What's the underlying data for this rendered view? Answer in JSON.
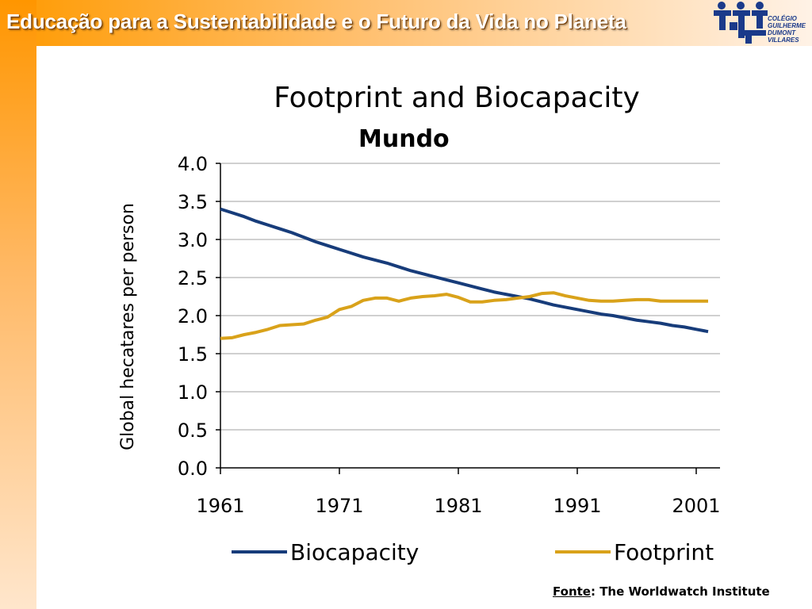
{
  "header": {
    "title": "Educação para a Sustentabilidade e o Futuro da Vida no Planeta",
    "logo_lines": [
      "COLÉGIO",
      "GUILHERME",
      "DUMONT",
      "VILLARES"
    ]
  },
  "colors": {
    "header_band": "#ff9a00",
    "biocapacity": "#173c7a",
    "footprint": "#d9a21a",
    "grid": "#c0c0c0",
    "logo": "#1a3a8a"
  },
  "chart_data": {
    "type": "line",
    "title": "Footprint and Biocapacity",
    "subtitle": "Mundo",
    "xlabel": "",
    "ylabel": "Global hecatares per person",
    "xlim": [
      1961,
      2003
    ],
    "ylim": [
      0,
      4.0
    ],
    "yticks": [
      "0.0",
      "0.5",
      "1.0",
      "1.5",
      "2.0",
      "2.5",
      "3.0",
      "3.5",
      "4.0"
    ],
    "xticks": [
      "1961",
      "1971",
      "1981",
      "1991",
      "2001"
    ],
    "grid": true,
    "legend": "bottom",
    "x": [
      1961,
      1962,
      1963,
      1964,
      1965,
      1966,
      1967,
      1968,
      1969,
      1970,
      1971,
      1972,
      1973,
      1974,
      1975,
      1976,
      1977,
      1978,
      1979,
      1980,
      1981,
      1982,
      1983,
      1984,
      1985,
      1986,
      1987,
      1988,
      1989,
      1990,
      1991,
      1992,
      1993,
      1994,
      1995,
      1996,
      1997,
      1998,
      1999,
      2000,
      2001,
      2002
    ],
    "series": [
      {
        "name": "Biocapacity",
        "values": [
          3.4,
          3.35,
          3.3,
          3.24,
          3.19,
          3.14,
          3.09,
          3.03,
          2.97,
          2.92,
          2.87,
          2.82,
          2.77,
          2.73,
          2.69,
          2.64,
          2.59,
          2.55,
          2.51,
          2.47,
          2.43,
          2.39,
          2.35,
          2.31,
          2.28,
          2.25,
          2.22,
          2.18,
          2.14,
          2.11,
          2.08,
          2.05,
          2.02,
          2.0,
          1.97,
          1.94,
          1.92,
          1.9,
          1.87,
          1.85,
          1.82,
          1.79
        ]
      },
      {
        "name": "Footprint",
        "values": [
          1.7,
          1.71,
          1.75,
          1.78,
          1.82,
          1.87,
          1.88,
          1.89,
          1.94,
          1.98,
          2.08,
          2.12,
          2.2,
          2.23,
          2.23,
          2.19,
          2.23,
          2.25,
          2.26,
          2.28,
          2.24,
          2.18,
          2.18,
          2.2,
          2.21,
          2.23,
          2.25,
          2.29,
          2.3,
          2.26,
          2.23,
          2.2,
          2.19,
          2.19,
          2.2,
          2.21,
          2.21,
          2.19,
          2.19,
          2.19,
          2.19,
          2.19
        ]
      }
    ]
  },
  "source": {
    "label": "Fonte",
    "text": ": The Worldwatch Institute"
  }
}
